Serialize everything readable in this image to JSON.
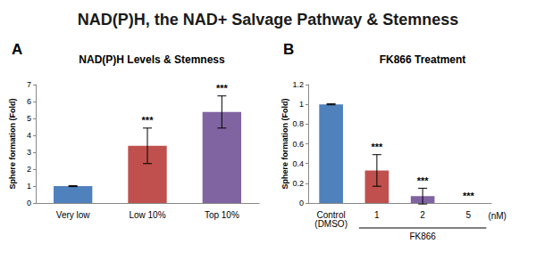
{
  "title": "NAD(P)H, the NAD+ Salvage Pathway & Stemness",
  "chart_data": [
    {
      "type": "bar",
      "panel": "A",
      "title": "NAD(P)H Levels & Stemness",
      "y_label": "Sphere formation (Fold)",
      "categories": [
        "Very low",
        "Low 10%",
        "Top 10%"
      ],
      "values": [
        1,
        3.38,
        5.38
      ],
      "errors": [
        0.03,
        1.05,
        0.95
      ],
      "annotations": [
        null,
        "***",
        "***"
      ],
      "colors": [
        "#4f81bd",
        "#c0504d",
        "#8064a2"
      ],
      "ylim": [
        0,
        7
      ],
      "yticks": [
        0,
        1,
        2,
        3,
        4,
        5,
        6,
        7
      ],
      "grid": false
    },
    {
      "type": "bar",
      "panel": "B",
      "title": "FK866 Treatment",
      "y_label": "Sphere formation (Fold)",
      "categories": [
        "Control\n(DMSO)",
        "1",
        "2",
        "5"
      ],
      "values": [
        1,
        0.33,
        0.07,
        0
      ],
      "errors": [
        0.005,
        0.16,
        0.08,
        0
      ],
      "annotations": [
        null,
        "***",
        "***",
        "***"
      ],
      "group_label": "FK866",
      "unit_label": "(nM)",
      "colors": [
        "#4f81bd",
        "#c0504d",
        "#8064a2",
        "#9bbb59"
      ],
      "ylim": [
        0,
        1.2
      ],
      "yticks": [
        0,
        0.2,
        0.4,
        0.6,
        0.8,
        1,
        1.2
      ],
      "grid": false
    }
  ]
}
